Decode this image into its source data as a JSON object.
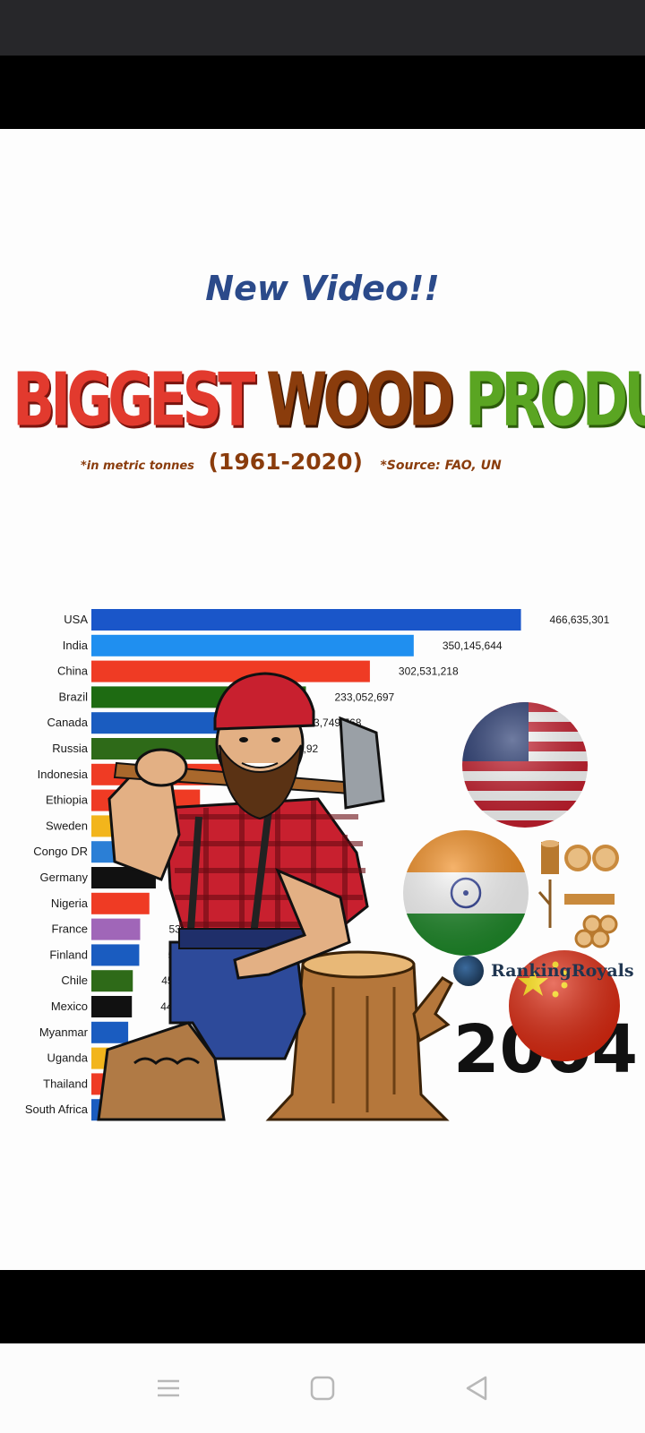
{
  "post": {
    "banner": "New Video!!",
    "title_part1": "BIGGEST",
    "title_part2": "WOOD",
    "title_part3": "PRODUCERS",
    "unit_note": "*in metric tonnes",
    "years": "(1961-2020)",
    "source_note": "*Source: FAO, UN",
    "watermark": "RankingRoyals"
  },
  "icons": {
    "nav_menu": "menu-icon",
    "nav_home": "square-home-icon",
    "nav_back": "triangle-back-icon",
    "mascot": "lumberjack-with-axe-icon",
    "logs": "wood-logs-icon"
  },
  "colors": {
    "headline_red": "#e23a2e",
    "headline_brown": "#8a3c0c",
    "headline_green": "#5aa522",
    "banner_blue": "#2b4a8a"
  },
  "chart_data": {
    "type": "bar",
    "orientation": "horizontal",
    "year_label": "2004",
    "categories": [
      "USA",
      "India",
      "China",
      "Brazil",
      "Canada",
      "Russia",
      "Indonesia",
      "Ethiopia",
      "Sweden",
      "Congo DR",
      "Germany",
      "Nigeria",
      "France",
      "Finland",
      "Chile",
      "Mexico",
      "Myanmar",
      "Uganda",
      "Thailand",
      "South Africa"
    ],
    "values": [
      466635301,
      350145644,
      302531218,
      233052697,
      203749768,
      179542920,
      150000000,
      118000000,
      88000000,
      78000000,
      70000000,
      63000000,
      53000000,
      52000000,
      45000000,
      44000000,
      40000000,
      38000000,
      36481000,
      33000000
    ],
    "value_labels": [
      "466,635,301",
      "350,145,644",
      "302,531,218",
      "233,052,697",
      "03,749,768",
      "542,92",
      "",
      "",
      "",
      "",
      "",
      "",
      "53",
      "5",
      "45",
      "44,",
      "",
      "",
      ",481,",
      ""
    ],
    "bar_colors": [
      "#1a56c9",
      "#1f8ff0",
      "#ef3b24",
      "#1e6b12",
      "#1a5cc0",
      "#2e6a18",
      "#ef3b24",
      "#ef3b24",
      "#f2b51c",
      "#2b7fd6",
      "#111111",
      "#ef3b24",
      "#a066b8",
      "#1a5cc0",
      "#2e6a18",
      "#111111",
      "#1a5cc0",
      "#f2b51c",
      "#ef3b24",
      "#1a5cc0"
    ],
    "xlim": [
      0,
      470000000
    ]
  }
}
